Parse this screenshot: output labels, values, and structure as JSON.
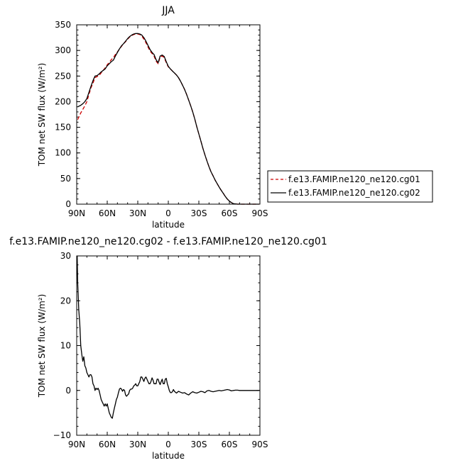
{
  "chart_data": [
    {
      "type": "line",
      "title": "JJA",
      "xlabel": "latitude",
      "ylabel": "TOM net SW flux (W/m²)",
      "xlim": [
        90,
        -90
      ],
      "ylim": [
        0,
        350
      ],
      "x_ticks": [
        90,
        60,
        30,
        0,
        -30,
        -60,
        -90
      ],
      "x_tick_labels": [
        "90N",
        "60N",
        "30N",
        "0",
        "30S",
        "60S",
        "90S"
      ],
      "y_ticks": [
        0,
        50,
        100,
        150,
        200,
        250,
        300,
        350
      ],
      "y_tick_labels": [
        "0",
        "50",
        "100",
        "150",
        "200",
        "250",
        "300",
        "350"
      ],
      "legend_position": "right",
      "series": [
        {
          "name": "f.e13.FAMIP.ne120_ne120.cg01",
          "color": "#cc0000",
          "dash": "dashed",
          "x": [
            89,
            86,
            84,
            82,
            80,
            78,
            76,
            74,
            72,
            70,
            68,
            66,
            64,
            62,
            60,
            58,
            56,
            54,
            52,
            50,
            48,
            46,
            44,
            42,
            40,
            38,
            36,
            34,
            32,
            30,
            28,
            26,
            24,
            22,
            20,
            18,
            16,
            14,
            12,
            10,
            8,
            6,
            4,
            2,
            0,
            -2,
            -4,
            -6,
            -8,
            -10,
            -12,
            -14,
            -16,
            -18,
            -20,
            -22,
            -24,
            -26,
            -28,
            -30,
            -32,
            -34,
            -36,
            -38,
            -40,
            -42,
            -44,
            -46,
            -48,
            -50,
            -52,
            -54,
            -56,
            -58,
            -60,
            -62,
            -64,
            -66,
            -68,
            -70,
            -72,
            -74,
            -76,
            -78,
            -80,
            -82,
            -84,
            -86,
            -89
          ],
          "values": [
            165,
            178,
            185,
            192,
            200,
            214,
            227,
            236,
            247,
            249,
            251,
            256,
            261,
            266,
            272,
            277,
            282,
            286,
            292,
            297,
            303,
            308,
            313,
            317,
            322,
            326,
            329,
            331,
            332,
            332,
            331,
            328,
            322,
            315,
            307,
            299,
            294,
            289,
            279,
            274,
            287,
            289,
            286,
            276,
            268,
            264,
            260,
            256,
            252,
            247,
            240,
            232,
            224,
            214,
            203,
            192,
            180,
            166,
            151,
            137,
            123,
            109,
            96,
            84,
            73,
            63,
            55,
            47,
            40,
            33,
            27,
            21,
            15,
            10,
            6,
            3,
            1,
            0.5,
            0,
            0,
            0,
            0,
            0,
            0,
            0,
            0,
            0,
            0,
            0
          ]
        },
        {
          "name": "f.e13.FAMIP.ne120_ne120.cg02",
          "color": "#000000",
          "dash": "solid",
          "x": [
            89,
            86,
            84,
            82,
            80,
            78,
            76,
            74,
            72,
            70,
            68,
            66,
            64,
            62,
            60,
            58,
            56,
            54,
            52,
            50,
            48,
            46,
            44,
            42,
            40,
            38,
            36,
            34,
            32,
            30,
            28,
            26,
            24,
            22,
            20,
            18,
            16,
            14,
            12,
            10,
            8,
            6,
            4,
            2,
            0,
            -2,
            -4,
            -6,
            -8,
            -10,
            -12,
            -14,
            -16,
            -18,
            -20,
            -22,
            -24,
            -26,
            -28,
            -30,
            -32,
            -34,
            -36,
            -38,
            -40,
            -42,
            -44,
            -46,
            -48,
            -50,
            -52,
            -54,
            -56,
            -58,
            -60,
            -62,
            -64,
            -66,
            -68,
            -70,
            -72,
            -74,
            -76,
            -78,
            -80,
            -82,
            -84,
            -86,
            -89
          ],
          "values": [
            190,
            193,
            196,
            200,
            206,
            218,
            230,
            241,
            250,
            251,
            254,
            258,
            261,
            264,
            270,
            274,
            278,
            281,
            289,
            296,
            303,
            309,
            313,
            318,
            323,
            327,
            330,
            332,
            333,
            333,
            332,
            330,
            325,
            318,
            310,
            302,
            296,
            292,
            282,
            276,
            289,
            291,
            288,
            278,
            269,
            264,
            260,
            256,
            252,
            247,
            240,
            232,
            224,
            214,
            203,
            192,
            180,
            166,
            151,
            137,
            123,
            109,
            96,
            84,
            73,
            63,
            55,
            47,
            40,
            33,
            27,
            21,
            15,
            10,
            6,
            3,
            1,
            0.5,
            0,
            0,
            0,
            0,
            0,
            0,
            0,
            0,
            0,
            0,
            0
          ]
        }
      ]
    },
    {
      "type": "line",
      "title": "f.e13.FAMIP.ne120_ne120.cg02 - f.e13.FAMIP.ne120_ne120.cg01",
      "xlabel": "latitude",
      "ylabel": "TOM net SW flux (W/m²)",
      "xlim": [
        90,
        -90
      ],
      "ylim": [
        -10,
        30
      ],
      "x_ticks": [
        90,
        60,
        30,
        0,
        -30,
        -60,
        -90
      ],
      "x_tick_labels": [
        "90N",
        "60N",
        "30N",
        "0",
        "30S",
        "60S",
        "90S"
      ],
      "y_ticks": [
        -10,
        0,
        10,
        20,
        30
      ],
      "y_tick_labels": [
        "−10",
        "0",
        "10",
        "20",
        "30"
      ],
      "series": [
        {
          "name": "",
          "color": "#000000",
          "dash": "solid",
          "x": [
            89.5,
            89,
            88,
            87,
            86,
            85,
            84,
            83,
            82,
            81,
            80,
            79,
            78,
            77,
            76,
            75,
            74,
            73,
            72,
            71,
            70,
            69,
            68,
            67,
            66,
            65,
            64,
            63,
            62,
            61,
            60,
            59,
            58,
            57,
            56,
            55,
            54,
            53,
            52,
            51,
            50,
            49,
            48,
            47,
            46,
            45,
            44,
            43,
            42,
            41,
            40,
            39,
            38,
            37,
            36,
            35,
            34,
            33,
            32,
            31,
            30,
            29,
            28,
            27,
            26,
            25,
            24,
            23,
            22,
            21,
            20,
            19,
            18,
            17,
            16,
            15,
            14,
            13,
            12,
            11,
            10,
            9,
            8,
            7,
            6,
            5,
            4,
            3,
            2,
            1,
            0,
            -1,
            -2,
            -3,
            -4,
            -5,
            -6,
            -8,
            -10,
            -12,
            -14,
            -16,
            -18,
            -20,
            -22,
            -24,
            -26,
            -28,
            -30,
            -32,
            -34,
            -36,
            -38,
            -40,
            -42,
            -44,
            -46,
            -48,
            -50,
            -52,
            -54,
            -56,
            -58,
            -60,
            -62,
            -64,
            -66,
            -68,
            -70,
            -75,
            -80,
            -85,
            -89
          ],
          "values": [
            30,
            24,
            18,
            15,
            10,
            8,
            6.5,
            7.5,
            5.5,
            5,
            4,
            3.5,
            3,
            3.5,
            3.5,
            3,
            1.5,
            1,
            0,
            0.5,
            0.2,
            0.5,
            0,
            -1,
            -2,
            -2.5,
            -3,
            -3.5,
            -3,
            -3.5,
            -3,
            -4,
            -5,
            -5.5,
            -6,
            -6.2,
            -5,
            -4,
            -3,
            -2,
            -1.5,
            -0.5,
            0.3,
            0.5,
            0.3,
            -0.2,
            0.2,
            0,
            -1,
            -1.3,
            -1,
            -0.8,
            0,
            0.3,
            0.3,
            0.5,
            1,
            1.2,
            1.5,
            1,
            1,
            1.5,
            2,
            3,
            3,
            2.5,
            2,
            2.7,
            3,
            2.5,
            2,
            1.5,
            1.5,
            2,
            2.8,
            2.3,
            1.5,
            1.5,
            1.5,
            2.5,
            2.5,
            1.8,
            1.3,
            2,
            2.5,
            1.5,
            1.5,
            2.5,
            2.7,
            1.5,
            0.8,
            0,
            -0.5,
            -0.5,
            -0.3,
            0.2,
            -0.2,
            -0.6,
            -0.2,
            -0.4,
            -0.6,
            -0.5,
            -0.8,
            -1,
            -0.6,
            -0.3,
            -0.5,
            -0.6,
            -0.4,
            -0.2,
            -0.3,
            -0.5,
            -0.1,
            0,
            -0.2,
            -0.3,
            -0.2,
            -0.1,
            0,
            -0.1,
            0,
            0.1,
            0.2,
            0.1,
            -0.1,
            0,
            0.05,
            0.05,
            0,
            0,
            0,
            0,
            0
          ]
        }
      ]
    }
  ]
}
